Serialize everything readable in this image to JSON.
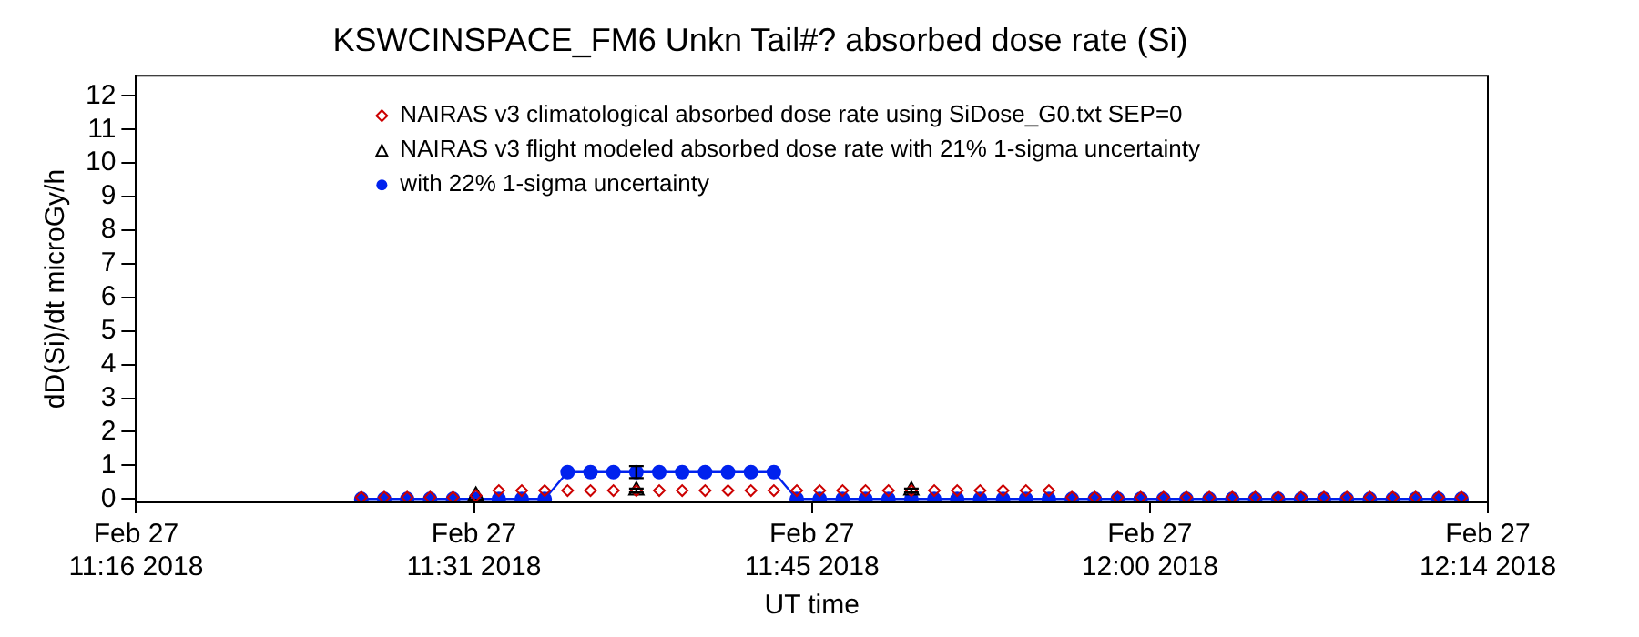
{
  "chart_data": {
    "type": "line",
    "title": "KSWCINSPACE_FM6 Unkn Tail#? absorbed dose rate (Si)",
    "xlabel": "UT time",
    "ylabel": "dD(Si)/dt microGy/h",
    "xlim": [
      "2018-02-27T11:16:00",
      "2018-02-27T12:14:00"
    ],
    "xticks": [
      {
        "value": "2018-02-27T11:16:00",
        "label": "Feb 27\n11:16 2018"
      },
      {
        "value": "2018-02-27T11:30:30",
        "label": "Feb 27\n11:31 2018"
      },
      {
        "value": "2018-02-27T11:45:00",
        "label": "Feb 27\n11:45 2018"
      },
      {
        "value": "2018-02-27T11:59:30",
        "label": "Feb 27\n12:00 2018"
      },
      {
        "value": "2018-02-27T12:14:00",
        "label": "Feb 27\n12:14 2018"
      }
    ],
    "ylim": [
      -0.1,
      12.6
    ],
    "yticks": [
      0,
      1,
      2,
      3,
      4,
      5,
      6,
      7,
      8,
      9,
      10,
      11,
      12
    ],
    "grid": false,
    "legend": "top left",
    "x": [
      "2018-02-27T11:25:40",
      "2018-02-27T11:26:39",
      "2018-02-27T11:27:38",
      "2018-02-27T11:28:37",
      "2018-02-27T11:29:36",
      "2018-02-27T11:30:35",
      "2018-02-27T11:31:34",
      "2018-02-27T11:32:33",
      "2018-02-27T11:33:32",
      "2018-02-27T11:34:31",
      "2018-02-27T11:35:30",
      "2018-02-27T11:36:29",
      "2018-02-27T11:37:28",
      "2018-02-27T11:38:27",
      "2018-02-27T11:39:26",
      "2018-02-27T11:40:25",
      "2018-02-27T11:41:24",
      "2018-02-27T11:42:23",
      "2018-02-27T11:43:22",
      "2018-02-27T11:44:21",
      "2018-02-27T11:45:20",
      "2018-02-27T11:46:19",
      "2018-02-27T11:47:18",
      "2018-02-27T11:48:17",
      "2018-02-27T11:49:16",
      "2018-02-27T11:50:15",
      "2018-02-27T11:51:14",
      "2018-02-27T11:52:13",
      "2018-02-27T11:53:12",
      "2018-02-27T11:54:11",
      "2018-02-27T11:55:10",
      "2018-02-27T11:56:09",
      "2018-02-27T11:57:08",
      "2018-02-27T11:58:07",
      "2018-02-27T11:59:06",
      "2018-02-27T12:00:05",
      "2018-02-27T12:01:04",
      "2018-02-27T12:02:03",
      "2018-02-27T12:03:02",
      "2018-02-27T12:04:01",
      "2018-02-27T12:05:00",
      "2018-02-27T12:05:59",
      "2018-02-27T12:06:58",
      "2018-02-27T12:07:57",
      "2018-02-27T12:08:56",
      "2018-02-27T12:09:55",
      "2018-02-27T12:10:54",
      "2018-02-27T12:11:53",
      "2018-02-27T12:12:52"
    ],
    "series": [
      {
        "name": "NAIRAS v3 climatological absorbed dose rate using SiDose_G0.txt SEP=0",
        "type": "scatter",
        "marker": "diamond",
        "color": "#cc0000",
        "values": [
          0.05,
          0.05,
          0.05,
          0.05,
          0.05,
          0.1,
          0.25,
          0.25,
          0.25,
          0.25,
          0.25,
          0.25,
          0.25,
          0.25,
          0.25,
          0.25,
          0.25,
          0.25,
          0.25,
          0.25,
          0.25,
          0.25,
          0.25,
          0.25,
          0.25,
          0.25,
          0.25,
          0.25,
          0.25,
          0.25,
          0.25,
          0.05,
          0.05,
          0.05,
          0.05,
          0.05,
          0.05,
          0.05,
          0.05,
          0.05,
          0.05,
          0.05,
          0.05,
          0.05,
          0.05,
          0.05,
          0.05,
          0.05,
          0.05
        ]
      },
      {
        "name": "NAIRAS v3 flight modeled absorbed dose rate with 21% 1-sigma uncertainty",
        "type": "scatter",
        "marker": "triangle",
        "color": "#000000",
        "values": [
          null,
          null,
          null,
          null,
          null,
          0.1,
          null,
          null,
          null,
          null,
          null,
          null,
          0.25,
          null,
          null,
          null,
          null,
          null,
          null,
          null,
          null,
          null,
          null,
          null,
          0.25,
          null,
          null,
          null,
          null,
          null,
          null,
          null,
          null,
          null,
          null,
          null,
          null,
          null,
          null,
          null,
          null,
          null,
          null,
          null,
          null,
          null,
          null,
          null,
          null
        ],
        "errors": [
          null,
          null,
          null,
          null,
          null,
          null,
          null,
          null,
          null,
          null,
          null,
          null,
          0.06,
          null,
          null,
          null,
          null,
          null,
          null,
          null,
          null,
          null,
          null,
          null,
          0.06,
          null,
          null,
          null,
          null,
          null,
          null,
          null,
          null,
          null,
          null,
          null,
          null,
          null,
          null,
          null,
          null,
          null,
          null,
          null,
          null,
          null,
          null,
          null,
          null
        ]
      },
      {
        "name": "with 22% 1-sigma uncertainty",
        "type": "line",
        "marker": "circle",
        "color": "#0022ee",
        "values": [
          0,
          0,
          0,
          0,
          0,
          0,
          0,
          0,
          0,
          0.8,
          0.8,
          0.8,
          0.8,
          0.8,
          0.8,
          0.8,
          0.8,
          0.8,
          0.8,
          0,
          0,
          0,
          0,
          0,
          0,
          0,
          0,
          0,
          0,
          0,
          0,
          0,
          0,
          0,
          0,
          0,
          0,
          0,
          0,
          0,
          0,
          0,
          0,
          0,
          0,
          0,
          0,
          0,
          0
        ],
        "errors": [
          null,
          null,
          null,
          null,
          null,
          null,
          null,
          null,
          null,
          null,
          null,
          null,
          0.18,
          null,
          null,
          null,
          null,
          null,
          null,
          null,
          null,
          null,
          null,
          null,
          null,
          null,
          null,
          null,
          null,
          null,
          null,
          null,
          null,
          null,
          null,
          null,
          null,
          null,
          null,
          null,
          null,
          null,
          null,
          null,
          null,
          null,
          null,
          null,
          null
        ]
      }
    ]
  }
}
